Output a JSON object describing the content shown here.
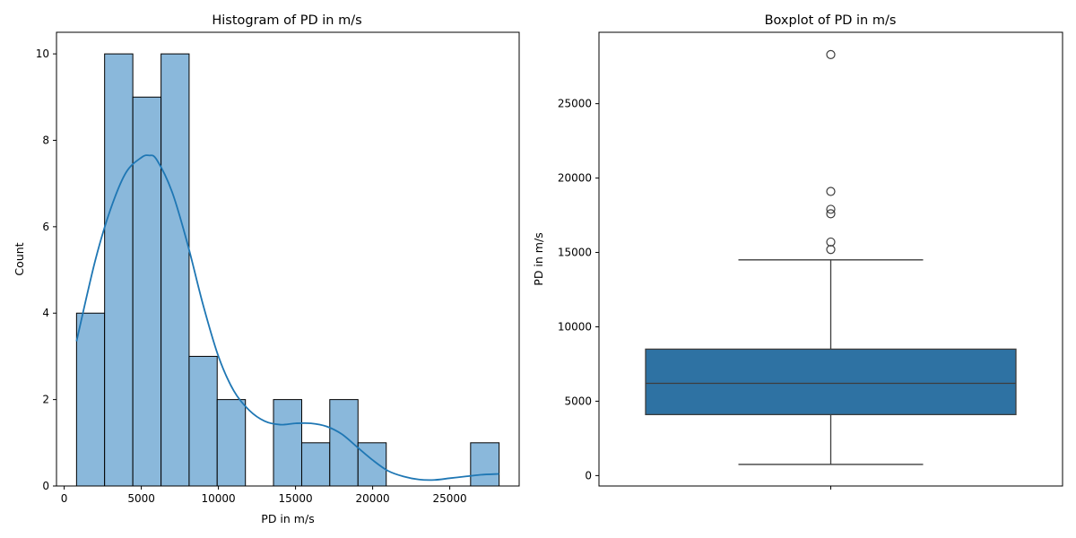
{
  "chart_data": [
    {
      "type": "bar",
      "title": "Histogram of PD in m/s",
      "xlabel": "PD in m/s",
      "ylabel": "Count",
      "xlim": [
        -500,
        29500
      ],
      "ylim": [
        0,
        10.5
      ],
      "xticks": [
        0,
        5000,
        10000,
        15000,
        20000,
        25000
      ],
      "yticks": [
        0,
        2,
        4,
        6,
        8,
        10
      ],
      "bins": [
        {
          "x0": 800,
          "x1": 2620,
          "count": 4
        },
        {
          "x0": 2620,
          "x1": 4450,
          "count": 10
        },
        {
          "x0": 4450,
          "x1": 6280,
          "count": 9
        },
        {
          "x0": 6280,
          "x1": 8100,
          "count": 10
        },
        {
          "x0": 8100,
          "x1": 9920,
          "count": 3
        },
        {
          "x0": 9920,
          "x1": 11750,
          "count": 2
        },
        {
          "x0": 11750,
          "x1": 13570,
          "count": 0
        },
        {
          "x0": 13570,
          "x1": 15400,
          "count": 2
        },
        {
          "x0": 15400,
          "x1": 17220,
          "count": 1
        },
        {
          "x0": 17220,
          "x1": 19050,
          "count": 2
        },
        {
          "x0": 19050,
          "x1": 20880,
          "count": 1
        },
        {
          "x0": 20880,
          "x1": 22700,
          "count": 0
        },
        {
          "x0": 22700,
          "x1": 24520,
          "count": 0
        },
        {
          "x0": 24520,
          "x1": 26350,
          "count": 0
        },
        {
          "x0": 26350,
          "x1": 28200,
          "count": 1
        }
      ],
      "kde": {
        "x": [
          800,
          2000,
          3000,
          4000,
          5000,
          5500,
          6000,
          7000,
          8000,
          9000,
          10000,
          11000,
          12000,
          13000,
          14000,
          15000,
          16000,
          17000,
          18000,
          19000,
          20000,
          21000,
          22000,
          23000,
          24000,
          25000,
          26000,
          27000,
          28200
        ],
        "y": [
          3.35,
          5.2,
          6.4,
          7.25,
          7.6,
          7.65,
          7.55,
          6.8,
          5.6,
          4.2,
          3.0,
          2.2,
          1.75,
          1.5,
          1.42,
          1.45,
          1.45,
          1.38,
          1.2,
          0.9,
          0.6,
          0.35,
          0.22,
          0.15,
          0.14,
          0.18,
          0.22,
          0.26,
          0.28
        ]
      },
      "bar_color": "#8ab8db",
      "line_color": "#1f77b4"
    },
    {
      "type": "box",
      "title": "Boxplot of PD in m/s",
      "ylabel": "PD in m/s",
      "ylim": [
        -700,
        29800
      ],
      "yticks": [
        0,
        5000,
        10000,
        15000,
        20000,
        25000
      ],
      "whisker_low": 750,
      "q1": 4100,
      "median": 6200,
      "q3": 8500,
      "whisker_high": 14500,
      "outliers": [
        15200,
        15700,
        17600,
        17900,
        19100,
        28300
      ],
      "box_color": "#2e72a3"
    }
  ]
}
